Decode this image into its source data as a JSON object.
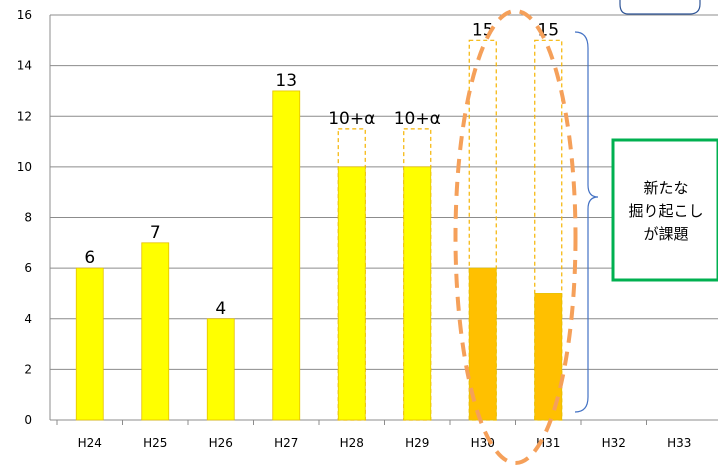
{
  "chart_data": {
    "type": "bar",
    "categories": [
      "H24",
      "H25",
      "H26",
      "H27",
      "H28",
      "H29",
      "H30",
      "H31",
      "H32",
      "H33"
    ],
    "ylim": [
      0,
      16
    ],
    "yticks": [
      0,
      2,
      4,
      6,
      8,
      10,
      12,
      14,
      16
    ],
    "grid": true,
    "series": [
      {
        "values": [
          6,
          7,
          4,
          13,
          10,
          10,
          6,
          5,
          null,
          null
        ],
        "color": "#FFFF00"
      },
      {
        "values": [
          null,
          null,
          null,
          null,
          11.5,
          11.5,
          15,
          15,
          null,
          null
        ],
        "style": "dashed-outline",
        "color": "#F5B400"
      }
    ],
    "highlight_fill": "#FFC000",
    "highlighted_categories": [
      "H30",
      "H31"
    ],
    "data_labels": [
      "6",
      "7",
      "4",
      "13",
      "10+α",
      "10+α",
      "15",
      "15",
      "",
      ""
    ],
    "annotations": {
      "callout_text": [
        "新たな",
        "掘り起こし",
        "が課題"
      ],
      "callout_border_color": "#00B050",
      "ellipse_color": "#F5A05A"
    }
  }
}
